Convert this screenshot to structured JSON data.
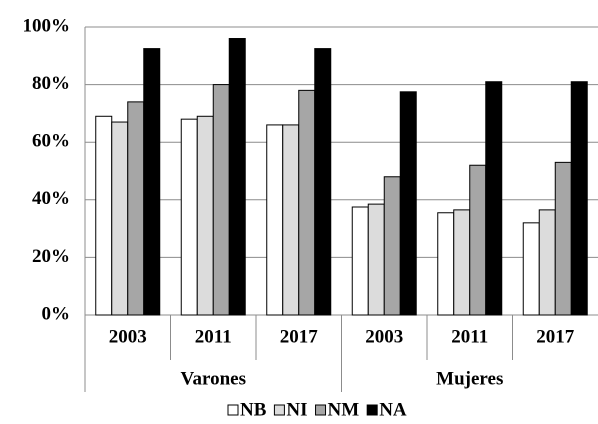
{
  "chart_data": {
    "type": "bar",
    "categories": [
      "2003",
      "2011",
      "2017",
      "2003",
      "2011",
      "2017"
    ],
    "group_labels": [
      "Varones",
      "Mujeres"
    ],
    "series": [
      {
        "name": "NB",
        "color": "#ffffff",
        "values": [
          69,
          68,
          66,
          37.5,
          35.5,
          32
        ]
      },
      {
        "name": "NI",
        "color": "#dcdcdc",
        "values": [
          67,
          69,
          66,
          38.5,
          36.5,
          36.5
        ]
      },
      {
        "name": "NM",
        "color": "#a6a6a6",
        "values": [
          74,
          80,
          78,
          48,
          52,
          53
        ]
      },
      {
        "name": "NA",
        "color": "#000000",
        "values": [
          92.5,
          96,
          92.5,
          77.5,
          81,
          81
        ]
      }
    ],
    "ylim": [
      0,
      100
    ],
    "yticks": [
      {
        "value": 0,
        "label": "0%"
      },
      {
        "value": 20,
        "label": "20%"
      },
      {
        "value": 40,
        "label": "40%"
      },
      {
        "value": 60,
        "label": "60%"
      },
      {
        "value": 80,
        "label": "80%"
      },
      {
        "value": 100,
        "label": "100%"
      }
    ],
    "grid": true,
    "legend": "bottom"
  }
}
